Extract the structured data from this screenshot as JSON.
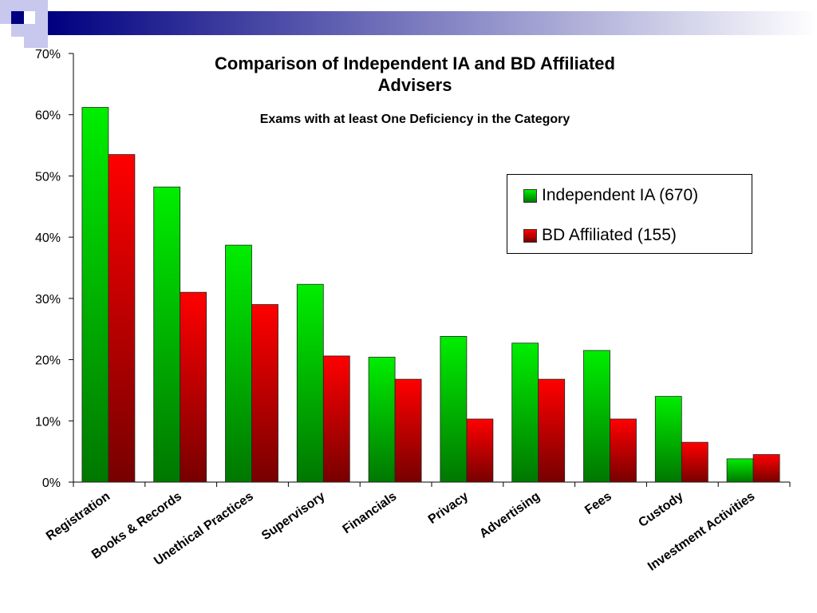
{
  "chart_data": {
    "type": "bar",
    "title": "Comparison of Independent IA and BD Affiliated Advisers",
    "subtitle": "Exams with at least One Deficiency in the Category",
    "categories": [
      "Registration",
      "Books & Records",
      "Unethical Practices",
      "Supervisory",
      "Financials",
      "Privacy",
      "Advertising",
      "Fees",
      "Custody",
      "Investment Activities"
    ],
    "series": [
      {
        "name": "Independent IA (670)",
        "color": "#00dd00",
        "values": [
          61.2,
          48.2,
          38.7,
          32.3,
          20.4,
          23.8,
          22.7,
          21.5,
          14.0,
          3.8
        ]
      },
      {
        "name": "BD Affiliated (155)",
        "color": "#ee0000",
        "values": [
          53.5,
          31.0,
          29.0,
          20.6,
          16.8,
          10.3,
          16.8,
          10.3,
          6.5,
          4.5
        ]
      }
    ],
    "ylim": [
      0,
      70
    ],
    "yticks": [
      "0%",
      "10%",
      "20%",
      "30%",
      "40%",
      "50%",
      "60%",
      "70%"
    ],
    "xlabel": "",
    "ylabel": "",
    "grid": false,
    "legend_position": "top-right"
  }
}
